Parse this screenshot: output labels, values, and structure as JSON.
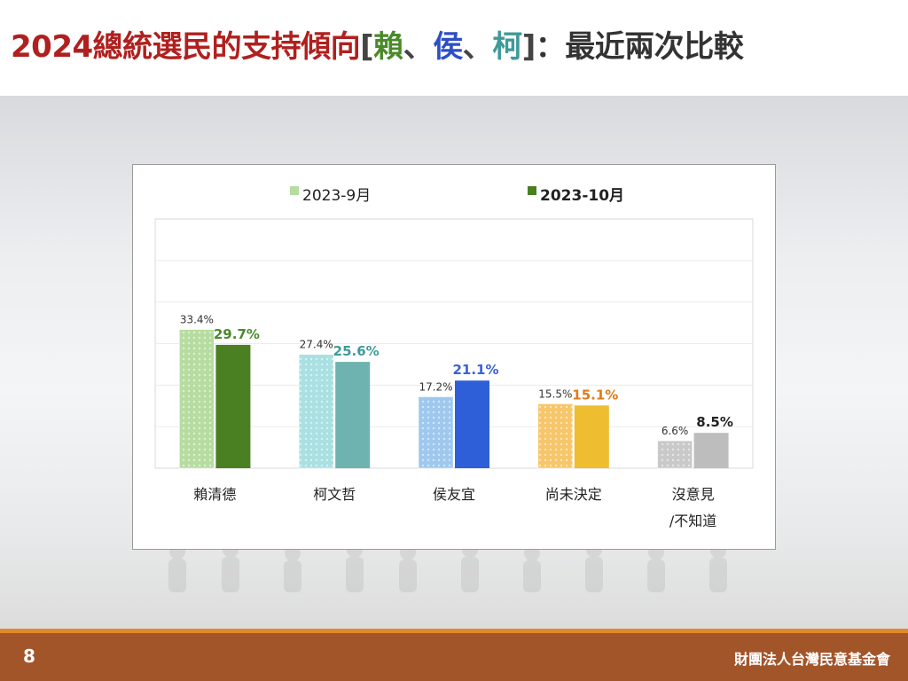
{
  "title": {
    "main": "2024總統選民的支持傾向",
    "bracket_open": "[",
    "name1": "賴",
    "sep1": "、",
    "name2": "侯",
    "sep2": "、",
    "name3": "柯",
    "bracket_close": "]",
    "rest": "：最近兩次比較"
  },
  "footer": {
    "page_number": "8",
    "organization": "財團法人台灣民意基金會"
  },
  "colors": {
    "title_red": "#b0201e",
    "footer_brown": "#a3552a",
    "footer_orange": "#e08a2a"
  },
  "chart_data": {
    "type": "bar",
    "categories": [
      "賴清德",
      "柯文哲",
      "侯友宜",
      "尚未決定",
      "沒意見\n/不知道"
    ],
    "series": [
      {
        "name": "2023-9月",
        "values": [
          33.4,
          27.4,
          17.2,
          15.5,
          6.6
        ],
        "value_labels": [
          "33.4%",
          "27.4%",
          "17.2%",
          "15.5%",
          "6.6%"
        ],
        "pattern": "light-patterned"
      },
      {
        "name": "2023-10月",
        "values": [
          29.7,
          25.6,
          21.1,
          15.1,
          8.5
        ],
        "value_labels": [
          "29.7%",
          "25.6%",
          "21.1%",
          "15.1%",
          "8.5%"
        ],
        "pattern": "solid"
      }
    ],
    "bar_colors": {
      "sep": [
        "#b6dca0",
        "#a9e0e2",
        "#9ec8ee",
        "#f7c66a",
        "#c9c9c9"
      ],
      "oct": [
        "#4a7f22",
        "#6fb3b0",
        "#2f5fd8",
        "#eebd30",
        "#bdbdbd"
      ]
    },
    "label_colors": {
      "sep": "#333333",
      "oct": [
        "#4a8a2a",
        "#3f9a9a",
        "#3a62d8",
        "#e07a1a",
        "#222222"
      ]
    },
    "ylim": [
      0,
      60
    ],
    "grid": true,
    "legend_position": "top"
  }
}
